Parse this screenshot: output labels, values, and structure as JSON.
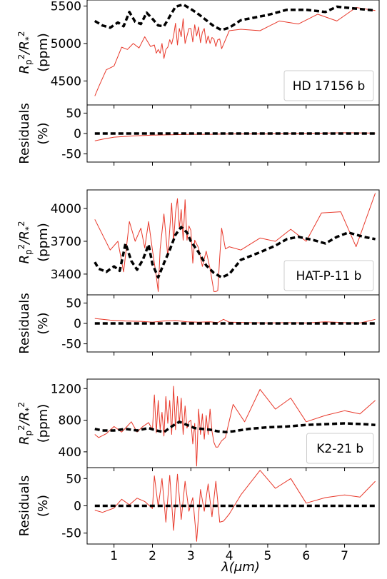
{
  "chart_data": {
    "type": "line",
    "xlabel": "λ(μm)",
    "xlim": [
      0.3,
      7.9
    ],
    "xticks": [
      "1",
      "2",
      "3",
      "4",
      "5",
      "6",
      "7"
    ],
    "colors": {
      "observed": "#e8382a",
      "model": "#000000"
    },
    "panels": [
      {
        "planet": "HD 17156 b",
        "ylabel_top": "R_p^2/R_*^2",
        "ylabel_bottom": "(ppm)",
        "spectrum": {
          "ylim": [
            4180,
            5580
          ],
          "yticks": [
            4500,
            5000,
            5500
          ],
          "series": [
            {
              "name": "",
              "style": "solid-red",
              "x": [
                0.5,
                0.6,
                0.8,
                1.0,
                1.2,
                1.35,
                1.5,
                1.65,
                1.8,
                1.95,
                2.05,
                2.1,
                2.15,
                2.2,
                2.25,
                2.3,
                2.35,
                2.4,
                2.45,
                2.5,
                2.55,
                2.6,
                2.65,
                2.7,
                2.75,
                2.8,
                2.85,
                2.9,
                2.95,
                3.0,
                3.05,
                3.1,
                3.15,
                3.2,
                3.25,
                3.3,
                3.35,
                3.4,
                3.45,
                3.5,
                3.55,
                3.6,
                3.65,
                3.7,
                3.75,
                3.8,
                4.0,
                4.3,
                4.8,
                5.3,
                5.8,
                6.3,
                6.8,
                7.3,
                7.8
              ],
              "y": [
                4300,
                4420,
                4650,
                4700,
                4950,
                4920,
                5000,
                4940,
                5090,
                4960,
                4980,
                4870,
                4920,
                4870,
                5000,
                4800,
                4920,
                4950,
                5050,
                4990,
                5100,
                5270,
                4980,
                5200,
                5090,
                5330,
                5000,
                5100,
                5200,
                5200,
                5020,
                5250,
                5100,
                5220,
                5010,
                5150,
                5200,
                5000,
                5100,
                5000,
                5080,
                5060,
                4960,
                5050,
                5060,
                4930,
                5170,
                5190,
                5170,
                5300,
                5260,
                5390,
                5300,
                5480,
                5440
              ]
            },
            {
              "name": "",
              "style": "dashed-black",
              "x": [
                0.5,
                0.7,
                0.9,
                1.1,
                1.25,
                1.4,
                1.55,
                1.7,
                1.85,
                2.0,
                2.15,
                2.3,
                2.45,
                2.6,
                2.8,
                3.0,
                3.2,
                3.4,
                3.6,
                3.8,
                4.0,
                4.3,
                4.7,
                5.0,
                5.5,
                6.0,
                6.5,
                6.8,
                7.2,
                7.8
              ],
              "y": [
                5300,
                5240,
                5210,
                5280,
                5230,
                5420,
                5290,
                5260,
                5410,
                5330,
                5240,
                5230,
                5360,
                5490,
                5520,
                5460,
                5390,
                5310,
                5230,
                5180,
                5210,
                5310,
                5350,
                5380,
                5450,
                5450,
                5420,
                5490,
                5470,
                5440
              ]
            }
          ]
        },
        "residuals": {
          "ylabel": "Residuals",
          "yunit": "(%)",
          "ylim": [
            -70,
            70
          ],
          "yticks": [
            50,
            0,
            -50
          ],
          "series": [
            {
              "name": "",
              "style": "solid-red",
              "x": [
                0.5,
                0.7,
                1.0,
                1.5,
                2.0,
                2.5,
                3.0,
                3.5,
                4.0,
                5.0,
                6.0,
                7.0,
                7.8
              ],
              "y": [
                -18,
                -14,
                -9,
                -6,
                -4,
                -3,
                -2,
                -2,
                -1,
                -1,
                0,
                2,
                1
              ]
            },
            {
              "name": "",
              "style": "dashed-black",
              "x": [
                0.5,
                7.8
              ],
              "y": [
                0,
                0
              ]
            }
          ]
        }
      },
      {
        "planet": "HAT-P-11 b",
        "ylabel_top": "R_p^2/R_*^2",
        "ylabel_bottom": "(ppm)",
        "spectrum": {
          "ylim": [
            3210,
            4170
          ],
          "yticks": [
            3400,
            3700,
            4000
          ],
          "series": [
            {
              "name": "",
              "style": "solid-red",
              "x": [
                0.5,
                0.9,
                1.1,
                1.25,
                1.4,
                1.55,
                1.7,
                1.8,
                1.9,
                2.0,
                2.1,
                2.15,
                2.2,
                2.3,
                2.4,
                2.5,
                2.55,
                2.6,
                2.65,
                2.7,
                2.75,
                2.8,
                2.85,
                2.9,
                2.95,
                3.0,
                3.05,
                3.1,
                3.2,
                3.3,
                3.4,
                3.5,
                3.6,
                3.65,
                3.7,
                3.75,
                3.8,
                3.9,
                4.0,
                4.3,
                4.8,
                5.2,
                5.6,
                6.0,
                6.4,
                6.9,
                7.3,
                7.8
              ],
              "y": [
                3900,
                3620,
                3700,
                3420,
                3880,
                3700,
                3820,
                3640,
                3880,
                3620,
                3380,
                3240,
                3630,
                3950,
                3560,
                4050,
                3690,
                3960,
                4090,
                3820,
                3990,
                3710,
                4080,
                3710,
                3840,
                3800,
                3500,
                3710,
                3640,
                3470,
                3610,
                3450,
                3240,
                3240,
                3250,
                3550,
                3820,
                3630,
                3650,
                3620,
                3730,
                3700,
                3810,
                3700,
                3960,
                3970,
                3650,
                4140
              ]
            },
            {
              "name": "",
              "style": "dashed-black",
              "x": [
                0.5,
                0.6,
                0.8,
                1.0,
                1.15,
                1.3,
                1.45,
                1.6,
                1.75,
                1.9,
                2.0,
                2.15,
                2.3,
                2.45,
                2.6,
                2.75,
                2.9,
                3.0,
                3.2,
                3.4,
                3.6,
                3.8,
                4.0,
                4.3,
                4.8,
                5.2,
                5.5,
                5.8,
                6.2,
                6.5,
                6.8,
                7.1,
                7.5,
                7.8
              ],
              "y": [
                3510,
                3450,
                3420,
                3470,
                3430,
                3680,
                3520,
                3440,
                3530,
                3670,
                3490,
                3370,
                3500,
                3620,
                3760,
                3830,
                3780,
                3700,
                3600,
                3480,
                3410,
                3370,
                3400,
                3530,
                3600,
                3660,
                3720,
                3740,
                3710,
                3680,
                3740,
                3780,
                3740,
                3720
              ]
            }
          ]
        },
        "residuals": {
          "ylabel": "Residuals",
          "yunit": "(%)",
          "ylim": [
            -70,
            70
          ],
          "yticks": [
            50,
            0,
            -50
          ],
          "series": [
            {
              "name": "",
              "style": "solid-red",
              "x": [
                0.5,
                0.9,
                1.3,
                1.7,
                2.0,
                2.3,
                2.6,
                2.9,
                3.2,
                3.5,
                3.7,
                3.85,
                4.0,
                4.5,
                5.0,
                5.5,
                6.0,
                6.5,
                7.0,
                7.4,
                7.8
              ],
              "y": [
                12,
                8,
                6,
                5,
                3,
                6,
                7,
                4,
                3,
                4,
                2,
                10,
                3,
                2,
                1,
                2,
                1,
                4,
                2,
                1,
                10
              ]
            },
            {
              "name": "",
              "style": "dashed-black",
              "x": [
                0.5,
                7.8
              ],
              "y": [
                0,
                0
              ]
            }
          ]
        }
      },
      {
        "planet": "K2-21 b",
        "ylabel_top": "R_p^2/R_*^2",
        "ylabel_bottom": "(ppm)",
        "spectrum": {
          "ylim": [
            200,
            1320
          ],
          "yticks": [
            400,
            800,
            1200
          ],
          "series": [
            {
              "name": "",
              "style": "solid-red",
              "x": [
                0.5,
                0.6,
                0.8,
                1.0,
                1.2,
                1.3,
                1.45,
                1.6,
                1.75,
                1.9,
                2.0,
                2.05,
                2.1,
                2.15,
                2.2,
                2.25,
                2.3,
                2.35,
                2.4,
                2.45,
                2.5,
                2.55,
                2.6,
                2.65,
                2.7,
                2.75,
                2.8,
                2.85,
                2.9,
                2.95,
                3.0,
                3.05,
                3.1,
                3.15,
                3.2,
                3.25,
                3.3,
                3.35,
                3.4,
                3.45,
                3.5,
                3.55,
                3.6,
                3.65,
                3.7,
                3.8,
                3.9,
                4.1,
                4.4,
                4.8,
                5.2,
                5.6,
                6.0,
                6.5,
                7.0,
                7.4,
                7.8
              ],
              "y": [
                620,
                580,
                630,
                720,
                650,
                700,
                780,
                650,
                720,
                770,
                680,
                1120,
                640,
                1050,
                680,
                900,
                600,
                1100,
                760,
                1050,
                620,
                1230,
                680,
                1100,
                760,
                1080,
                620,
                980,
                700,
                780,
                800,
                500,
                760,
                220,
                940,
                620,
                880,
                560,
                860,
                620,
                940,
                660,
                520,
                460,
                460,
                540,
                580,
                1000,
                780,
                1190,
                940,
                1080,
                780,
                860,
                920,
                880,
                1050
              ]
            },
            {
              "name": "",
              "style": "dashed-black",
              "x": [
                0.5,
                0.7,
                1.0,
                1.3,
                1.6,
                1.9,
                2.1,
                2.3,
                2.5,
                2.7,
                2.9,
                3.1,
                3.3,
                3.5,
                3.7,
                3.9,
                4.1,
                4.5,
                5.0,
                5.5,
                6.0,
                6.5,
                7.0,
                7.5,
                7.8
              ],
              "y": [
                690,
                670,
                670,
                690,
                670,
                700,
                670,
                650,
                720,
                780,
                740,
                700,
                690,
                680,
                660,
                650,
                660,
                690,
                710,
                720,
                740,
                750,
                760,
                750,
                740
              ]
            }
          ]
        },
        "residuals": {
          "ylabel": "Residuals",
          "yunit": "(%)",
          "ylim": [
            -70,
            70
          ],
          "yticks": [
            50,
            0,
            -50
          ],
          "series": [
            {
              "name": "",
              "style": "solid-red",
              "x": [
                0.5,
                0.7,
                1.0,
                1.2,
                1.4,
                1.6,
                1.8,
                2.0,
                2.05,
                2.15,
                2.25,
                2.35,
                2.45,
                2.55,
                2.65,
                2.75,
                2.85,
                2.95,
                3.05,
                3.15,
                3.25,
                3.35,
                3.45,
                3.55,
                3.65,
                3.75,
                3.85,
                4.0,
                4.3,
                4.8,
                5.2,
                5.6,
                6.0,
                6.5,
                7.0,
                7.4,
                7.8
              ],
              "y": [
                -8,
                -12,
                -4,
                12,
                2,
                14,
                8,
                -5,
                55,
                -2,
                50,
                -30,
                56,
                -45,
                58,
                -25,
                45,
                -10,
                15,
                -65,
                30,
                -10,
                40,
                -20,
                45,
                -30,
                -28,
                -15,
                20,
                65,
                32,
                50,
                5,
                15,
                20,
                16,
                45
              ]
            },
            {
              "name": "",
              "style": "dashed-black",
              "x": [
                0.5,
                7.8
              ],
              "y": [
                0,
                0
              ]
            }
          ]
        }
      }
    ]
  }
}
